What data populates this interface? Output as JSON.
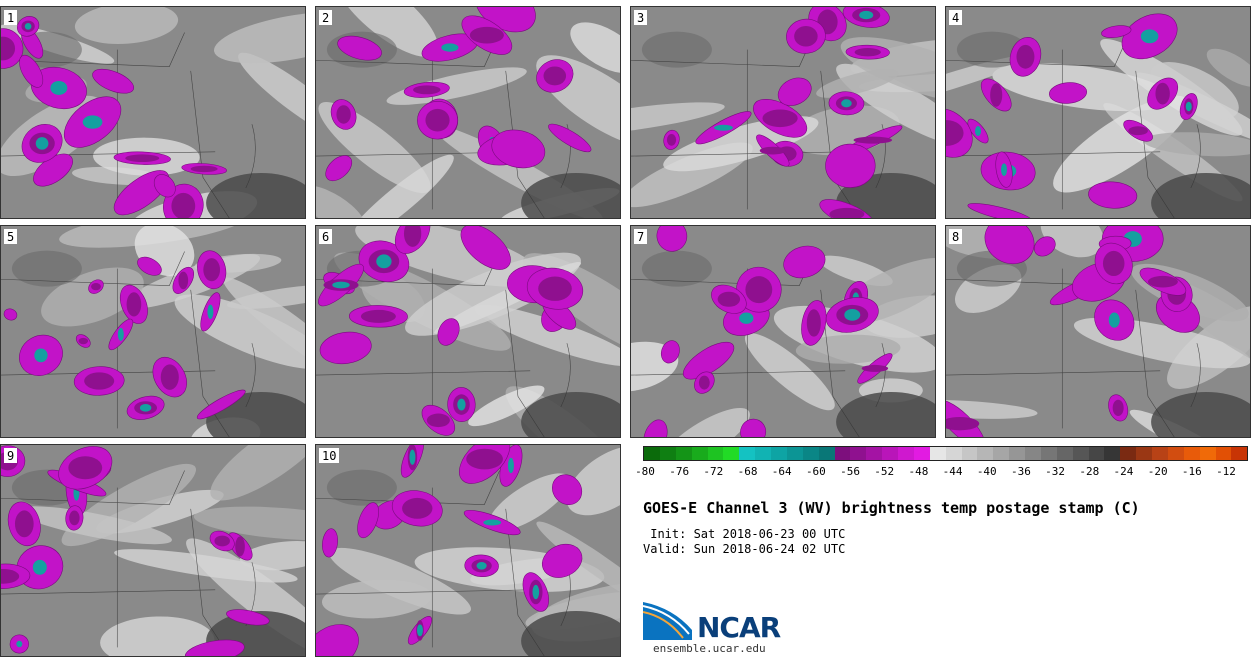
{
  "panels": [
    {
      "label": "1"
    },
    {
      "label": "2"
    },
    {
      "label": "3"
    },
    {
      "label": "4"
    },
    {
      "label": "5"
    },
    {
      "label": "6"
    },
    {
      "label": "7"
    },
    {
      "label": "8"
    },
    {
      "label": "9"
    },
    {
      "label": "10"
    }
  ],
  "legend": {
    "colors": [
      "#0b6b0b",
      "#0f7f12",
      "#149417",
      "#19ab1c",
      "#1ec322",
      "#22db26",
      "#14c2c2",
      "#11b3b3",
      "#0ea4a4",
      "#0c9595",
      "#0a8686",
      "#097777",
      "#7d0f7d",
      "#8f118f",
      "#a413a4",
      "#b915b9",
      "#cf18cf",
      "#e21be2",
      "#e6e6e6",
      "#d6d6d6",
      "#c6c6c6",
      "#b6b6b6",
      "#a6a6a6",
      "#969696",
      "#868686",
      "#767676",
      "#666666",
      "#565656",
      "#464646",
      "#363636",
      "#7a2a12",
      "#9a3714",
      "#b84216",
      "#d24d10",
      "#e85b0a",
      "#f06a08",
      "#e25005",
      "#c83405"
    ],
    "ticks": [
      "-80",
      "-76",
      "-72",
      "-68",
      "-64",
      "-60",
      "-56",
      "-52",
      "-48",
      "-44",
      "-40",
      "-36",
      "-32",
      "-28",
      "-24",
      "-20",
      "-16",
      "-12"
    ]
  },
  "title": "GOES-E Channel 3 (WV) brightness temp postage stamp (C)",
  "init": " Init: Sat 2018-06-23 00 UTC",
  "valid": "Valid: Sun 2018-06-24 02 UTC",
  "logo": {
    "text": "NCAR",
    "site": "ensemble.ucar.edu"
  }
}
